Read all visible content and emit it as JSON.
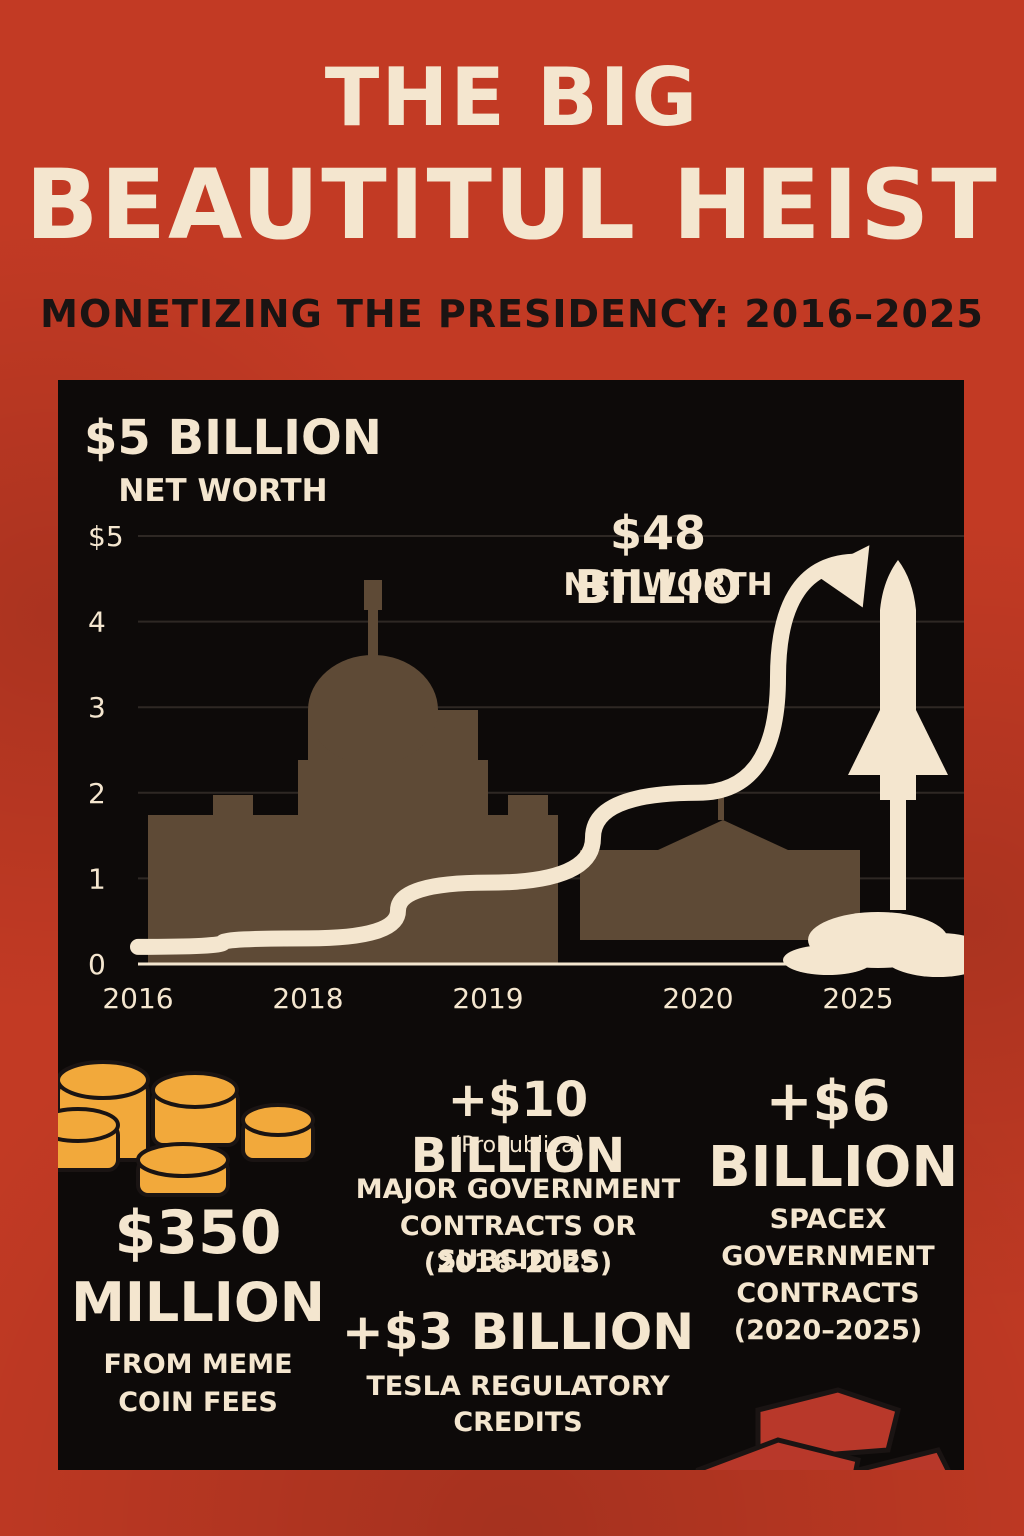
{
  "header": {
    "title_line1": "THE BIG",
    "title_line2": "BEAUTITUL HEIST",
    "subtitle": "MONETIZING THE PRESIDENCY: 2016–2025"
  },
  "chart_data": {
    "type": "line",
    "x": [
      "2016",
      "2018",
      "2019",
      "2020",
      "2025"
    ],
    "values": [
      0.2,
      0.3,
      0.95,
      2.0,
      4.7
    ],
    "y_ticks": [
      "0",
      "1",
      "2",
      "3",
      "4",
      "$5"
    ],
    "ylim": [
      0,
      5
    ],
    "grid": true,
    "annotations": [
      {
        "value": "$5 BILLION",
        "caption": "NET WORTH"
      },
      {
        "value": "$48 BILLIO",
        "caption": "NET WORTH"
      }
    ]
  },
  "stats": {
    "meme": {
      "value_line1": "$350",
      "value_line2": "MILLION",
      "desc_line1": "FROM MEME",
      "desc_line2": "COIN FEES"
    },
    "contracts": {
      "value": "+$10 BILLION",
      "source": "(ProPublica)",
      "desc_line1": "MAJOR GOVERNMENT",
      "desc_line2": "CONTRACTS OR SUBSIDIES",
      "desc_line3": "(2016–2025)"
    },
    "tesla": {
      "value": "+$3 BILLION",
      "desc_line1": "TESLA REGULATORY",
      "desc_line2": "CREDITS"
    },
    "spacex": {
      "value_line1": "+$6",
      "value_line2": "BILLION",
      "desc_line1": "SPACEX",
      "desc_line2": "GOVERNMENT",
      "desc_line3": "CONTRACTS",
      "desc_line4": "(2020–2025)"
    }
  },
  "colors": {
    "background": "#c23a24",
    "panel": "#0d0a09",
    "cream": "#f4e6cf",
    "buildings": "#5e4a36",
    "coins": "#f2a93b",
    "gold_bars": "#b8382a"
  }
}
